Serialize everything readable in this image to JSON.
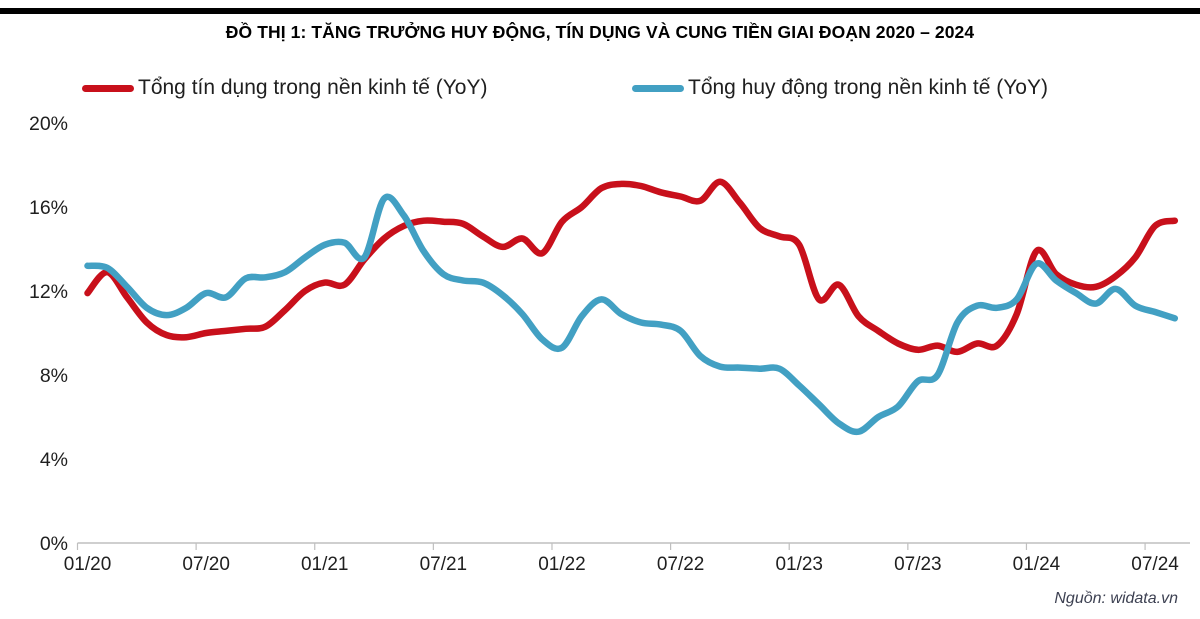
{
  "title": "ĐỒ THỊ 1: TĂNG TRƯỞNG HUY ĐỘNG, TÍN DỤNG VÀ CUNG TIỀN GIAI ĐOẠN 2020 – 2024",
  "source": "Nguồn: widata.vn",
  "colors": {
    "credit_line": "#C8101B",
    "deposit_line": "#42A0C3",
    "axis": "#BFBFBF",
    "tick_label": "#1f1f1f",
    "title": "#000000",
    "top_rule": "#000000",
    "source_text": "#3d4152"
  },
  "chart_data": {
    "type": "line",
    "smoothed": true,
    "grid": false,
    "legend_position": "top",
    "ylim": [
      0,
      20
    ],
    "y_ticks": [
      0,
      4,
      8,
      12,
      16,
      20
    ],
    "y_tick_labels": [
      "0%",
      "4%",
      "8%",
      "12%",
      "16%",
      "20%"
    ],
    "x_tick_labels": [
      "01/20",
      "07/20",
      "01/21",
      "07/21",
      "01/22",
      "07/22",
      "01/23",
      "07/23",
      "01/24",
      "07/24"
    ],
    "x": [
      "01/20",
      "02/20",
      "03/20",
      "04/20",
      "05/20",
      "06/20",
      "07/20",
      "08/20",
      "09/20",
      "10/20",
      "11/20",
      "12/20",
      "01/21",
      "02/21",
      "03/21",
      "04/21",
      "05/21",
      "06/21",
      "07/21",
      "08/21",
      "09/21",
      "10/21",
      "11/21",
      "12/21",
      "01/22",
      "02/22",
      "03/22",
      "04/22",
      "05/22",
      "06/22",
      "07/22",
      "08/22",
      "09/22",
      "10/22",
      "11/22",
      "12/22",
      "01/23",
      "02/23",
      "03/23",
      "04/23",
      "05/23",
      "06/23",
      "07/23",
      "08/23",
      "09/23",
      "10/23",
      "11/23",
      "12/23",
      "01/24",
      "02/24",
      "03/24",
      "04/24",
      "05/24",
      "06/24",
      "07/24",
      "08/24"
    ],
    "unit": "%",
    "series": [
      {
        "name": "Tổng tín dụng trong nền kinh tế (YoY)",
        "color": "#C8101B",
        "values": [
          11.9,
          12.9,
          11.7,
          10.5,
          9.9,
          9.8,
          10.0,
          10.1,
          10.2,
          10.3,
          11.1,
          12.0,
          12.4,
          12.3,
          13.5,
          14.5,
          15.1,
          15.35,
          15.3,
          15.2,
          14.6,
          14.1,
          14.5,
          13.8,
          15.3,
          16.0,
          16.9,
          17.1,
          17.0,
          16.7,
          16.5,
          16.3,
          17.2,
          16.2,
          15.0,
          14.6,
          14.2,
          11.6,
          12.3,
          10.8,
          10.1,
          9.5,
          9.2,
          9.4,
          9.1,
          9.5,
          9.4,
          10.9,
          13.9,
          12.8,
          12.3,
          12.2,
          12.7,
          13.6,
          15.1,
          15.35
        ]
      },
      {
        "name": "Tổng huy động trong nền kinh tế (YoY)",
        "color": "#42A0C3",
        "values": [
          13.2,
          13.1,
          12.2,
          11.2,
          10.85,
          11.2,
          11.9,
          11.7,
          12.6,
          12.65,
          12.9,
          13.6,
          14.2,
          14.3,
          13.6,
          16.4,
          15.6,
          13.9,
          12.8,
          12.5,
          12.4,
          11.8,
          10.9,
          9.7,
          9.3,
          10.8,
          11.6,
          10.9,
          10.5,
          10.4,
          10.1,
          8.9,
          8.4,
          8.35,
          8.3,
          8.3,
          7.5,
          6.6,
          5.7,
          5.3,
          6.0,
          6.5,
          7.7,
          8.0,
          10.5,
          11.3,
          11.2,
          11.6,
          13.3,
          12.5,
          11.9,
          11.4,
          12.1,
          11.3,
          11.0,
          10.7
        ]
      }
    ]
  }
}
